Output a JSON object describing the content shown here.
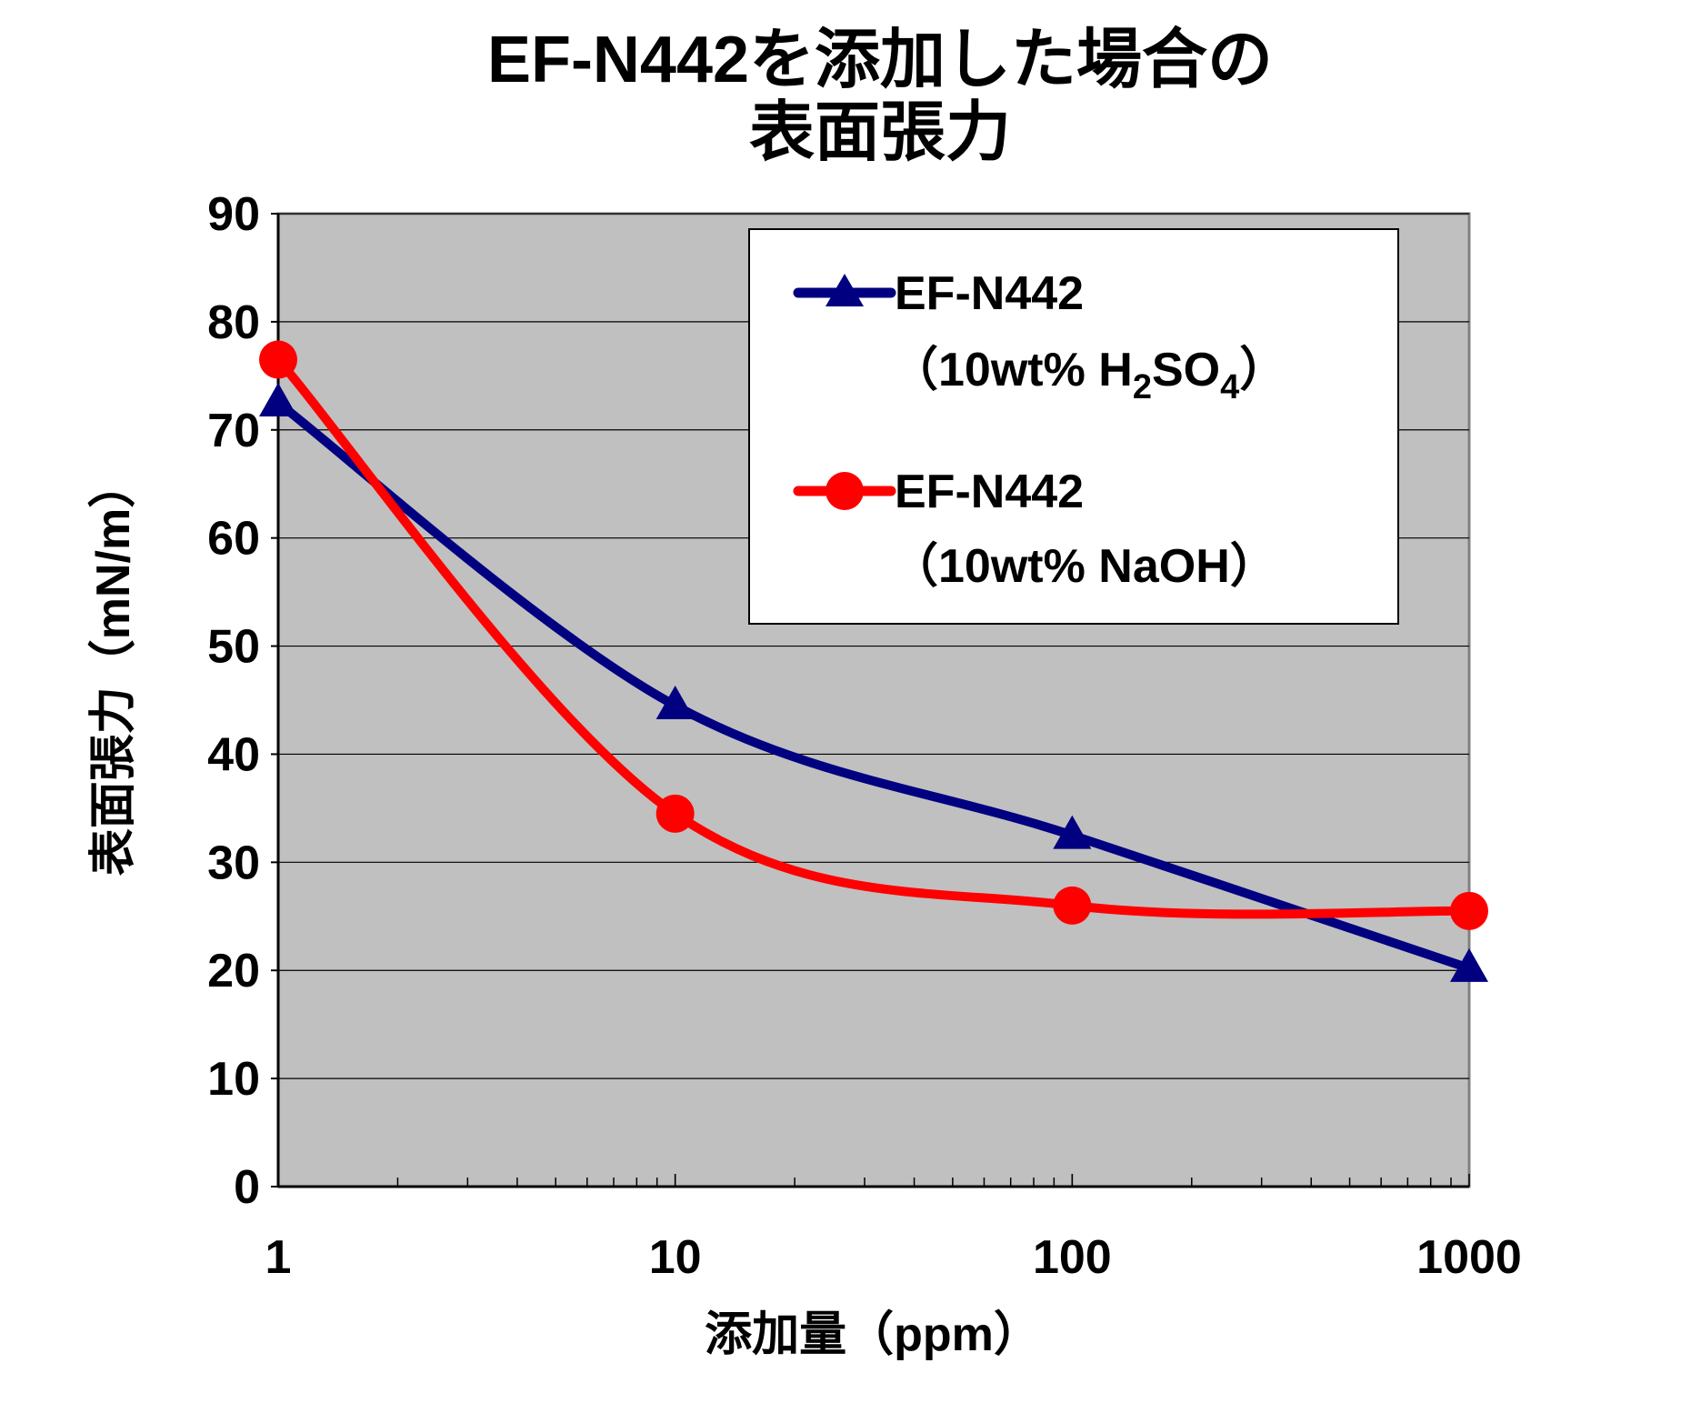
{
  "chart_data": {
    "type": "line",
    "title_line1": "EF-N442を添加した場合の",
    "title_line2": "表面張力",
    "xlabel": "添加量（ppm）",
    "ylabel": "表面張力（mN/m）",
    "x_scale": "log",
    "xlim": [
      1,
      1000
    ],
    "ylim": [
      0,
      90
    ],
    "x_ticks": [
      1,
      10,
      100,
      1000
    ],
    "x_tick_labels": [
      "1",
      "10",
      "100",
      "1000"
    ],
    "y_ticks": [
      0,
      10,
      20,
      30,
      40,
      50,
      60,
      70,
      80,
      90
    ],
    "y_tick_labels": [
      "0",
      "10",
      "20",
      "30",
      "40",
      "50",
      "60",
      "70",
      "80",
      "90"
    ],
    "grid": true,
    "plot_background": "#c0c0c0",
    "legend_position": "top-right",
    "series": [
      {
        "name_line1": "EF-N442",
        "name_line2_prefix": "（10wt%  H",
        "name_line2_sub1": "2",
        "name_line2_mid": "SO",
        "name_line2_sub2": "4",
        "name_line2_suffix": "）",
        "color": "#000080",
        "marker": "triangle",
        "x": [
          1,
          10,
          100,
          1000
        ],
        "y": [
          72.5,
          44.5,
          32.5,
          20.2
        ]
      },
      {
        "name_line1": "EF-N442",
        "name_line2": "（10wt% NaOH）",
        "color": "#ff0000",
        "marker": "circle",
        "x": [
          1,
          10,
          100,
          1000
        ],
        "y": [
          76.5,
          34.5,
          26.0,
          25.5
        ]
      }
    ]
  }
}
